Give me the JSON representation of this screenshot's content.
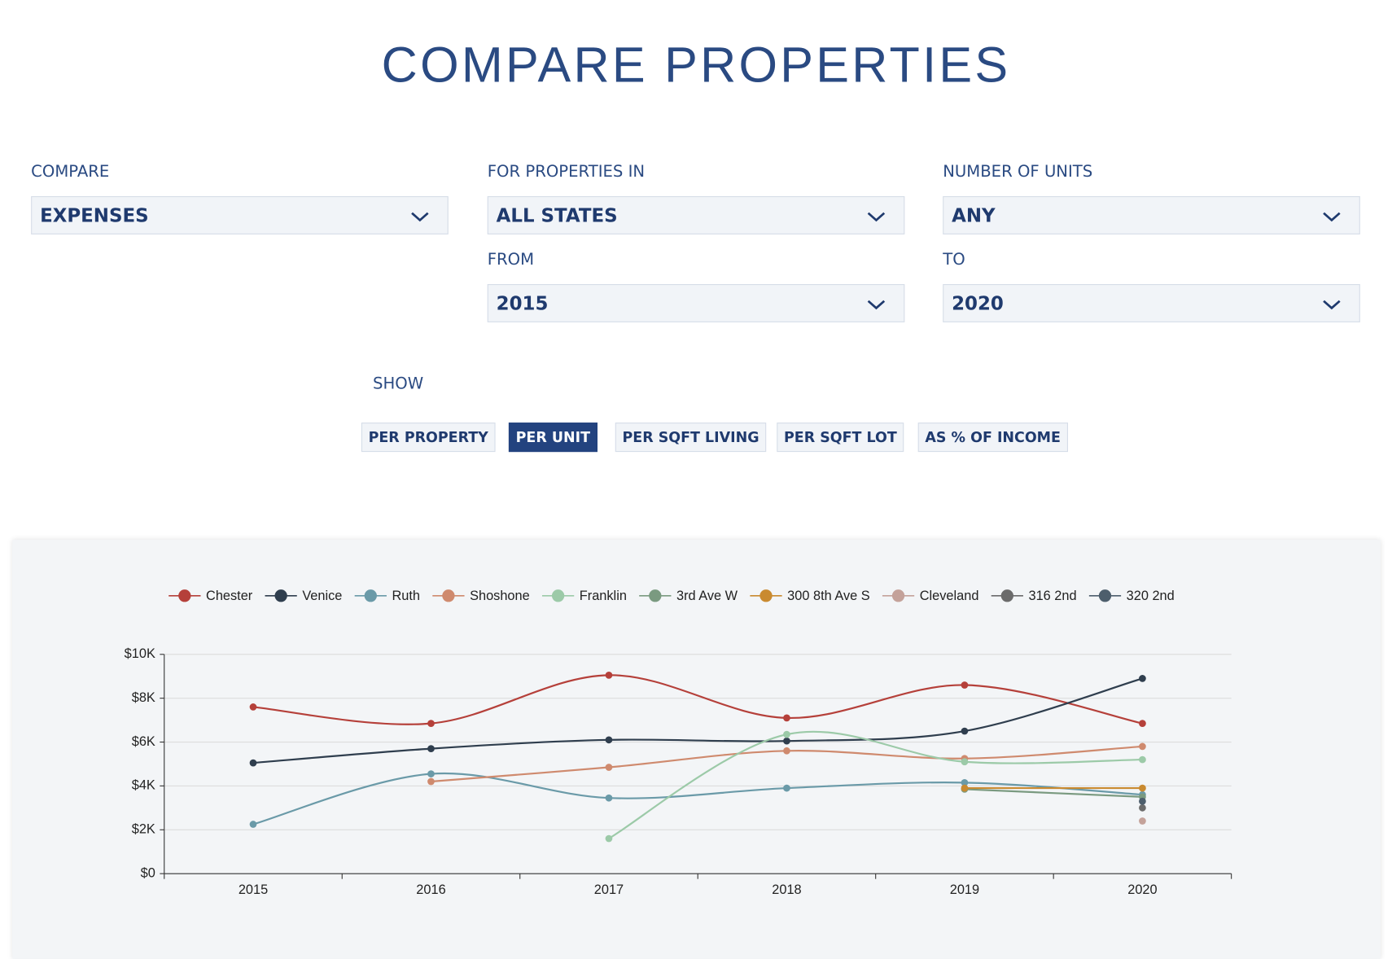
{
  "header": {
    "title": "COMPARE PROPERTIES"
  },
  "filters": [
    {
      "label": "COMPARE",
      "value": "EXPENSES"
    },
    {
      "label": "FOR PROPERTIES IN",
      "value": "ALL STATES"
    },
    {
      "label": "NUMBER OF UNITS",
      "value": "ANY"
    },
    {
      "label": "FROM",
      "value": "2015"
    },
    {
      "label": "TO",
      "value": "2020"
    }
  ],
  "show": {
    "label": "SHOW",
    "options": [
      {
        "label": "PER PROPERTY"
      },
      {
        "label": "PER UNIT",
        "selected": true
      },
      {
        "label": "PER SQFT LIVING"
      },
      {
        "label": "PER SQFT LOT"
      },
      {
        "label": "AS % OF INCOME"
      }
    ]
  },
  "chart_data": {
    "type": "line",
    "categories": [
      "2015",
      "2016",
      "2017",
      "2018",
      "2019",
      "2020"
    ],
    "ylim": [
      0,
      10000
    ],
    "yticks": [
      {
        "value": 0,
        "label": "$0"
      },
      {
        "value": 2000,
        "label": "$2K"
      },
      {
        "value": 4000,
        "label": "$4K"
      },
      {
        "value": 6000,
        "label": "$6K"
      },
      {
        "value": 8000,
        "label": "$8K"
      },
      {
        "value": 10000,
        "label": "$10K"
      }
    ],
    "grid": true,
    "legend": "top",
    "smooth": true,
    "series": [
      {
        "name": "Chester",
        "color": "#b5403a",
        "values": [
          7600,
          6850,
          9050,
          7100,
          8600,
          6850
        ]
      },
      {
        "name": "Venice",
        "color": "#2f3e4e",
        "values": [
          5050,
          5700,
          6100,
          6050,
          6500,
          8900
        ]
      },
      {
        "name": "Ruth",
        "color": "#6a9aa8",
        "values": [
          2250,
          4550,
          3450,
          3900,
          4150,
          3600
        ]
      },
      {
        "name": "Shoshone",
        "color": "#cf8a6e",
        "values": [
          null,
          4200,
          4850,
          5600,
          5250,
          5800
        ]
      },
      {
        "name": "Franklin",
        "color": "#9ccaa8",
        "values": [
          null,
          null,
          1600,
          6350,
          5100,
          5200
        ]
      },
      {
        "name": "3rd Ave W",
        "color": "#7a9a80",
        "values": [
          null,
          null,
          null,
          null,
          3850,
          3500
        ]
      },
      {
        "name": "300 8th Ave S",
        "color": "#c98a30",
        "values": [
          null,
          null,
          null,
          null,
          3900,
          3900
        ]
      },
      {
        "name": "Cleveland",
        "color": "#c4a29a",
        "values": [
          null,
          null,
          null,
          null,
          null,
          2400
        ]
      },
      {
        "name": "316 2nd",
        "color": "#6b6b6b",
        "values": [
          null,
          null,
          null,
          null,
          null,
          3000
        ]
      },
      {
        "name": "320 2nd",
        "color": "#4d5e6c",
        "values": [
          null,
          null,
          null,
          null,
          null,
          3300
        ]
      }
    ]
  }
}
